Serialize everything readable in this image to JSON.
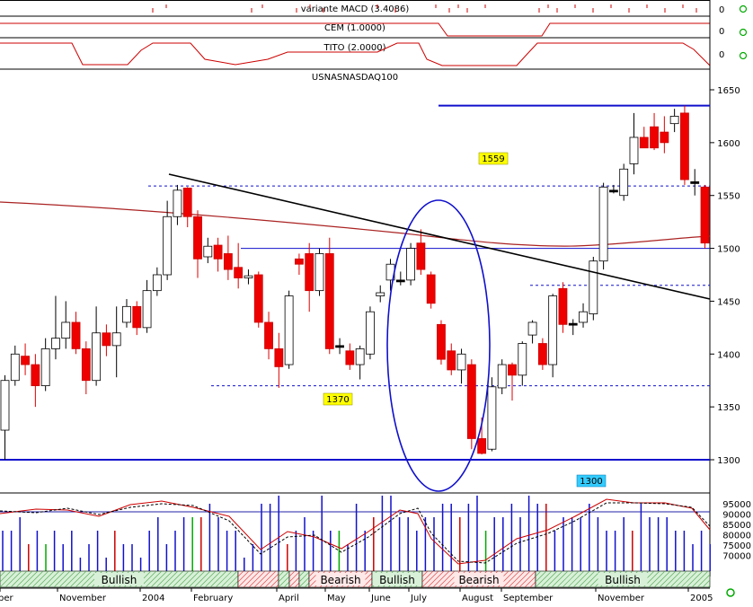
{
  "indicators": {
    "macd_label": "variante MACD (3.4086)",
    "cem_label": "CEM (1.0000)",
    "tito_label": "TITO (2.0000)",
    "axis_zero": "0"
  },
  "chart_data": {
    "type": "candlestick",
    "title": "USNASNASDAQ100",
    "y_ticks": [
      "1300",
      "1350",
      "1400",
      "1450",
      "1500",
      "1550",
      "1600",
      "1650"
    ],
    "ylim": [
      1285,
      1670
    ],
    "x_labels": [
      "ber",
      "November",
      "2004",
      "February",
      "April",
      "May",
      "June",
      "July",
      "August",
      "September",
      "November",
      "2005"
    ],
    "annotations": {
      "resistance_label": "1559",
      "support_label": "1370",
      "bottom_label": "1300"
    },
    "levels": {
      "top": 1635,
      "upper_dashed": 1559,
      "mid": 1500,
      "dashed_right": 1465,
      "lower_dashed": 1370,
      "bottom": 1300
    },
    "trendline": {
      "from": {
        "week": 14,
        "value": 1562
      },
      "to": {
        "week": 70,
        "value": 1440
      }
    },
    "candles": [
      [
        1328,
        1375,
        1300,
        1380
      ],
      [
        1375,
        1400,
        1370,
        1408
      ],
      [
        1398,
        1390,
        1380,
        1410
      ],
      [
        1390,
        1370,
        1350,
        1400
      ],
      [
        1370,
        1405,
        1365,
        1415
      ],
      [
        1405,
        1415,
        1395,
        1455
      ],
      [
        1415,
        1430,
        1405,
        1450
      ],
      [
        1430,
        1405,
        1400,
        1440
      ],
      [
        1405,
        1375,
        1362,
        1412
      ],
      [
        1375,
        1420,
        1370,
        1445
      ],
      [
        1420,
        1408,
        1398,
        1428
      ],
      [
        1408,
        1420,
        1378,
        1445
      ],
      [
        1430,
        1445,
        1425,
        1452
      ],
      [
        1445,
        1425,
        1418,
        1450
      ],
      [
        1425,
        1460,
        1420,
        1470
      ],
      [
        1460,
        1475,
        1455,
        1482
      ],
      [
        1475,
        1530,
        1470,
        1545
      ],
      [
        1530,
        1555,
        1522,
        1560
      ],
      [
        1557,
        1530,
        1520,
        1558
      ],
      [
        1530,
        1490,
        1472,
        1536
      ],
      [
        1492,
        1502,
        1486,
        1510
      ],
      [
        1503,
        1490,
        1478,
        1510
      ],
      [
        1495,
        1480,
        1470,
        1512
      ],
      [
        1482,
        1472,
        1462,
        1505
      ],
      [
        1472,
        1474,
        1466,
        1480
      ],
      [
        1475,
        1430,
        1425,
        1478
      ],
      [
        1430,
        1405,
        1395,
        1440
      ],
      [
        1405,
        1388,
        1368,
        1420
      ],
      [
        1390,
        1455,
        1386,
        1460
      ],
      [
        1490,
        1485,
        1475,
        1495
      ],
      [
        1495,
        1460,
        1440,
        1505
      ],
      [
        1460,
        1495,
        1455,
        1500
      ],
      [
        1495,
        1405,
        1400,
        1510
      ],
      [
        1408,
        1408,
        1400,
        1415
      ],
      [
        1403,
        1390,
        1385,
        1410
      ],
      [
        1390,
        1405,
        1376,
        1408
      ],
      [
        1400,
        1440,
        1395,
        1445
      ],
      [
        1455,
        1458,
        1449,
        1465
      ],
      [
        1470,
        1485,
        1460,
        1490
      ],
      [
        1470,
        1470,
        1465,
        1478
      ],
      [
        1470,
        1500,
        1465,
        1505
      ],
      [
        1505,
        1480,
        1475,
        1518
      ],
      [
        1475,
        1448,
        1443,
        1478
      ],
      [
        1428,
        1395,
        1390,
        1432
      ],
      [
        1403,
        1385,
        1380,
        1410
      ],
      [
        1385,
        1400,
        1372,
        1405
      ],
      [
        1390,
        1320,
        1310,
        1395
      ],
      [
        1320,
        1306,
        1305,
        1340
      ],
      [
        1310,
        1369,
        1308,
        1378
      ],
      [
        1368,
        1390,
        1362,
        1395
      ],
      [
        1390,
        1380,
        1356,
        1392
      ],
      [
        1380,
        1410,
        1370,
        1412
      ],
      [
        1418,
        1430,
        1410,
        1432
      ],
      [
        1410,
        1390,
        1385,
        1415
      ],
      [
        1390,
        1455,
        1378,
        1457
      ],
      [
        1462,
        1428,
        1420,
        1468
      ],
      [
        1428,
        1429,
        1418,
        1433
      ],
      [
        1430,
        1440,
        1425,
        1448
      ],
      [
        1438,
        1488,
        1432,
        1492
      ],
      [
        1488,
        1558,
        1480,
        1562
      ],
      [
        1555,
        1555,
        1552,
        1560
      ],
      [
        1550,
        1575,
        1545,
        1580
      ],
      [
        1580,
        1605,
        1570,
        1628
      ],
      [
        1605,
        1595,
        1595,
        1615
      ],
      [
        1615,
        1595,
        1593,
        1628
      ],
      [
        1610,
        1600,
        1590,
        1625
      ],
      [
        1618,
        1625,
        1610,
        1632
      ],
      [
        1628,
        1565,
        1560,
        1635
      ],
      [
        1563,
        1563,
        1550,
        1575
      ],
      [
        1558,
        1505,
        1500,
        1560
      ]
    ],
    "lower_panel": {
      "y_ticks": [
        "95000",
        "90000",
        "85000",
        "80000",
        "75000",
        "70000"
      ],
      "volume_bars": [
        3,
        3,
        4,
        2,
        3,
        2,
        3,
        2,
        3,
        1,
        2,
        3,
        1,
        3,
        2,
        2,
        1,
        3,
        4,
        2,
        3,
        4,
        4,
        4,
        5,
        4,
        3,
        3,
        1,
        2,
        5,
        5,
        6,
        2,
        3,
        4,
        3,
        6,
        3,
        3,
        2,
        5,
        3,
        4,
        6,
        6,
        4,
        4,
        3,
        4,
        4,
        5,
        5,
        4,
        5,
        6,
        3,
        4,
        4,
        5,
        4,
        6,
        5,
        5,
        3,
        4,
        4,
        4,
        5,
        4,
        3,
        3,
        4,
        3,
        5,
        4,
        4,
        4,
        3,
        3,
        2,
        3,
        2
      ],
      "signals": [
        {
          "label": "Bullish",
          "kind": "bull"
        },
        {
          "label": "",
          "kind": "bear"
        },
        {
          "label": "",
          "kind": "bull"
        },
        {
          "label": "",
          "kind": "bear"
        },
        {
          "label": "",
          "kind": "bull"
        },
        {
          "label": "Bearish",
          "kind": "bear"
        },
        {
          "label": "Bullish",
          "kind": "bull"
        },
        {
          "label": "Bearish",
          "kind": "bear"
        },
        {
          "label": "Bullish",
          "kind": "bull"
        }
      ]
    }
  }
}
